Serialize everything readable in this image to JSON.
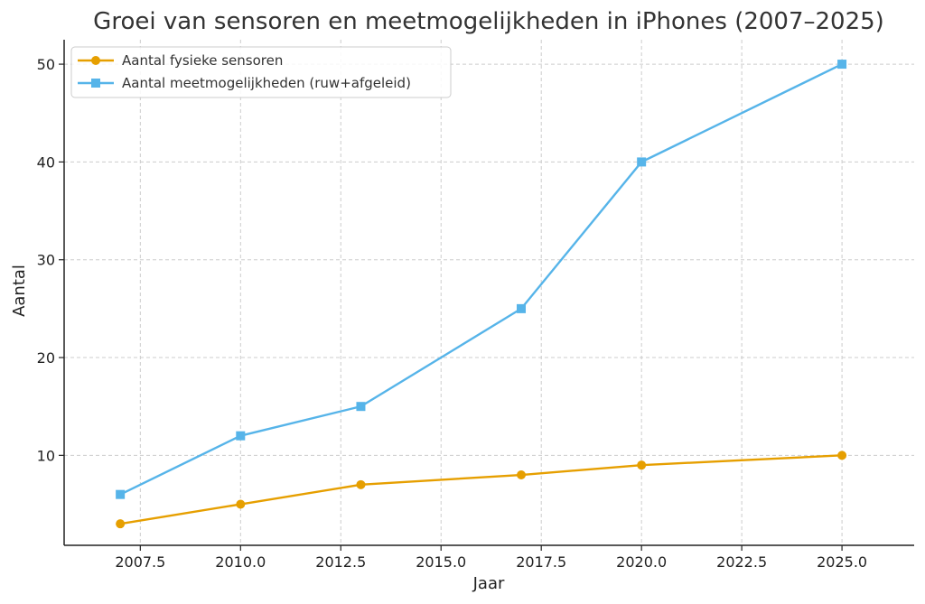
{
  "chart_data": {
    "type": "line",
    "title": "Groei van sensoren en meetmogelijkheden in iPhones (2007–2025)",
    "xlabel": "Jaar",
    "ylabel": "Aantal",
    "xlim": [
      2005.6,
      2026.8
    ],
    "ylim": [
      0.8,
      52.5
    ],
    "xticks": [
      2007.5,
      2010.0,
      2012.5,
      2015.0,
      2017.5,
      2020.0,
      2022.5,
      2025.0
    ],
    "xtick_labels": [
      "2007.5",
      "2010.0",
      "2012.5",
      "2015.0",
      "2017.5",
      "2020.0",
      "2022.5",
      "2025.0"
    ],
    "yticks": [
      10,
      20,
      30,
      40,
      50
    ],
    "ytick_labels": [
      "10",
      "20",
      "30",
      "40",
      "50"
    ],
    "grid": true,
    "legend_position": "top-left",
    "series": [
      {
        "name": "Aantal fysieke sensoren",
        "color": "#E69F00",
        "marker": "circle",
        "x": [
          2007,
          2010,
          2013,
          2017,
          2020,
          2025
        ],
        "y": [
          3,
          5,
          7,
          8,
          9,
          10
        ]
      },
      {
        "name": "Aantal meetmogelijkheden (ruw+afgeleid)",
        "color": "#56B4E9",
        "marker": "square",
        "x": [
          2007,
          2010,
          2013,
          2017,
          2020,
          2025
        ],
        "y": [
          6,
          12,
          15,
          25,
          40,
          50
        ]
      }
    ]
  }
}
